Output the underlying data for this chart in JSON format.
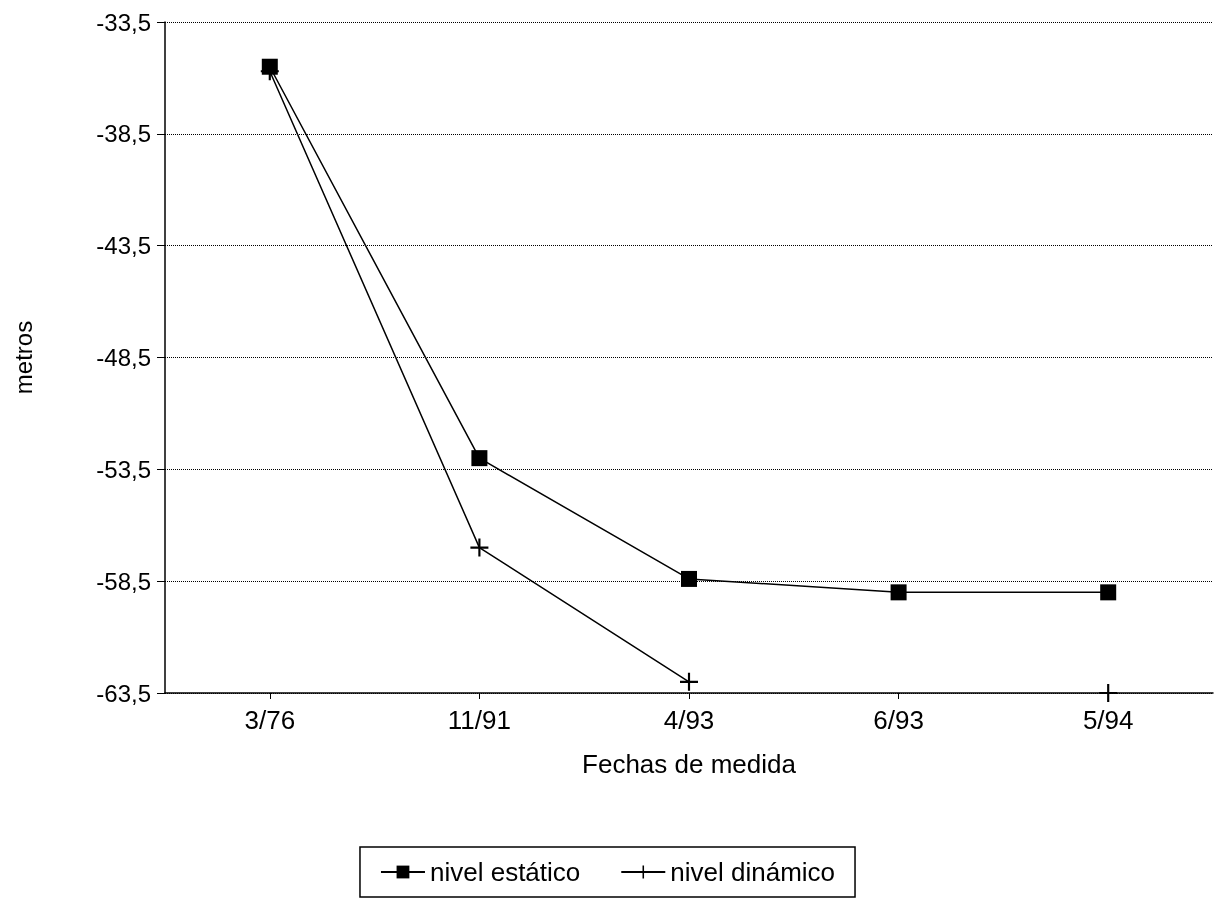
{
  "chart_data": {
    "type": "line",
    "xlabel": "Fechas de medida",
    "ylabel": "metros",
    "categories": [
      "3/76",
      "11/91",
      "4/93",
      "6/93",
      "5/94"
    ],
    "series": [
      {
        "name": "nivel estático",
        "color": "#000000",
        "marker": "square",
        "values": [
          -35.5,
          -53.0,
          -58.4,
          -59.0,
          -59.0
        ]
      },
      {
        "name": "nivel dinámico",
        "color": "#000000",
        "marker": "cross",
        "values": [
          -35.7,
          -57.0,
          -63.0,
          null,
          -63.5
        ]
      }
    ],
    "ylim": [
      -63.5,
      -33.5
    ],
    "yticks": [
      {
        "value": -63.5,
        "label": "-63,5"
      },
      {
        "value": -58.5,
        "label": "-58,5"
      },
      {
        "value": -53.5,
        "label": "-53,5"
      },
      {
        "value": -48.5,
        "label": "-48,5"
      },
      {
        "value": -43.5,
        "label": "-43,5"
      },
      {
        "value": -38.5,
        "label": "-38,5"
      },
      {
        "value": -33.5,
        "label": "-33,5"
      }
    ],
    "grid": "y",
    "legend": "bottom",
    "line_style": "solid"
  }
}
